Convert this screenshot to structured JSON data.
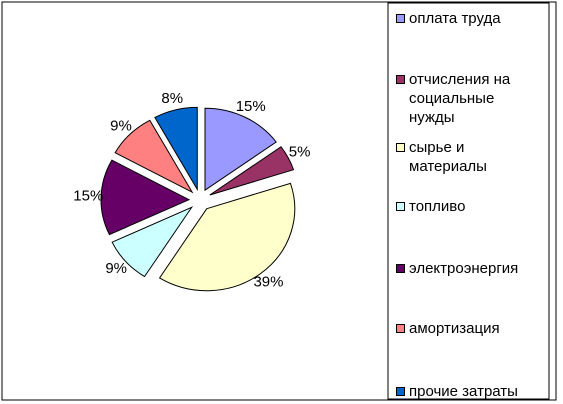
{
  "chart_data": {
    "type": "pie",
    "categories": [
      "оплата труда",
      "отчисления на социальные нужды",
      "сырье и материалы",
      "топливо",
      "электроэнергия",
      "амортизация",
      "прочие затраты"
    ],
    "values": [
      15,
      5,
      39,
      9,
      15,
      9,
      8
    ],
    "value_labels": [
      "15%",
      "5%",
      "39%",
      "9%",
      "15%",
      "9%",
      "8%"
    ],
    "colors": [
      "#9999ff",
      "#993366",
      "#ffffcc",
      "#ccffff",
      "#660066",
      "#ff8080",
      "#0066cc"
    ],
    "legend": "right"
  }
}
